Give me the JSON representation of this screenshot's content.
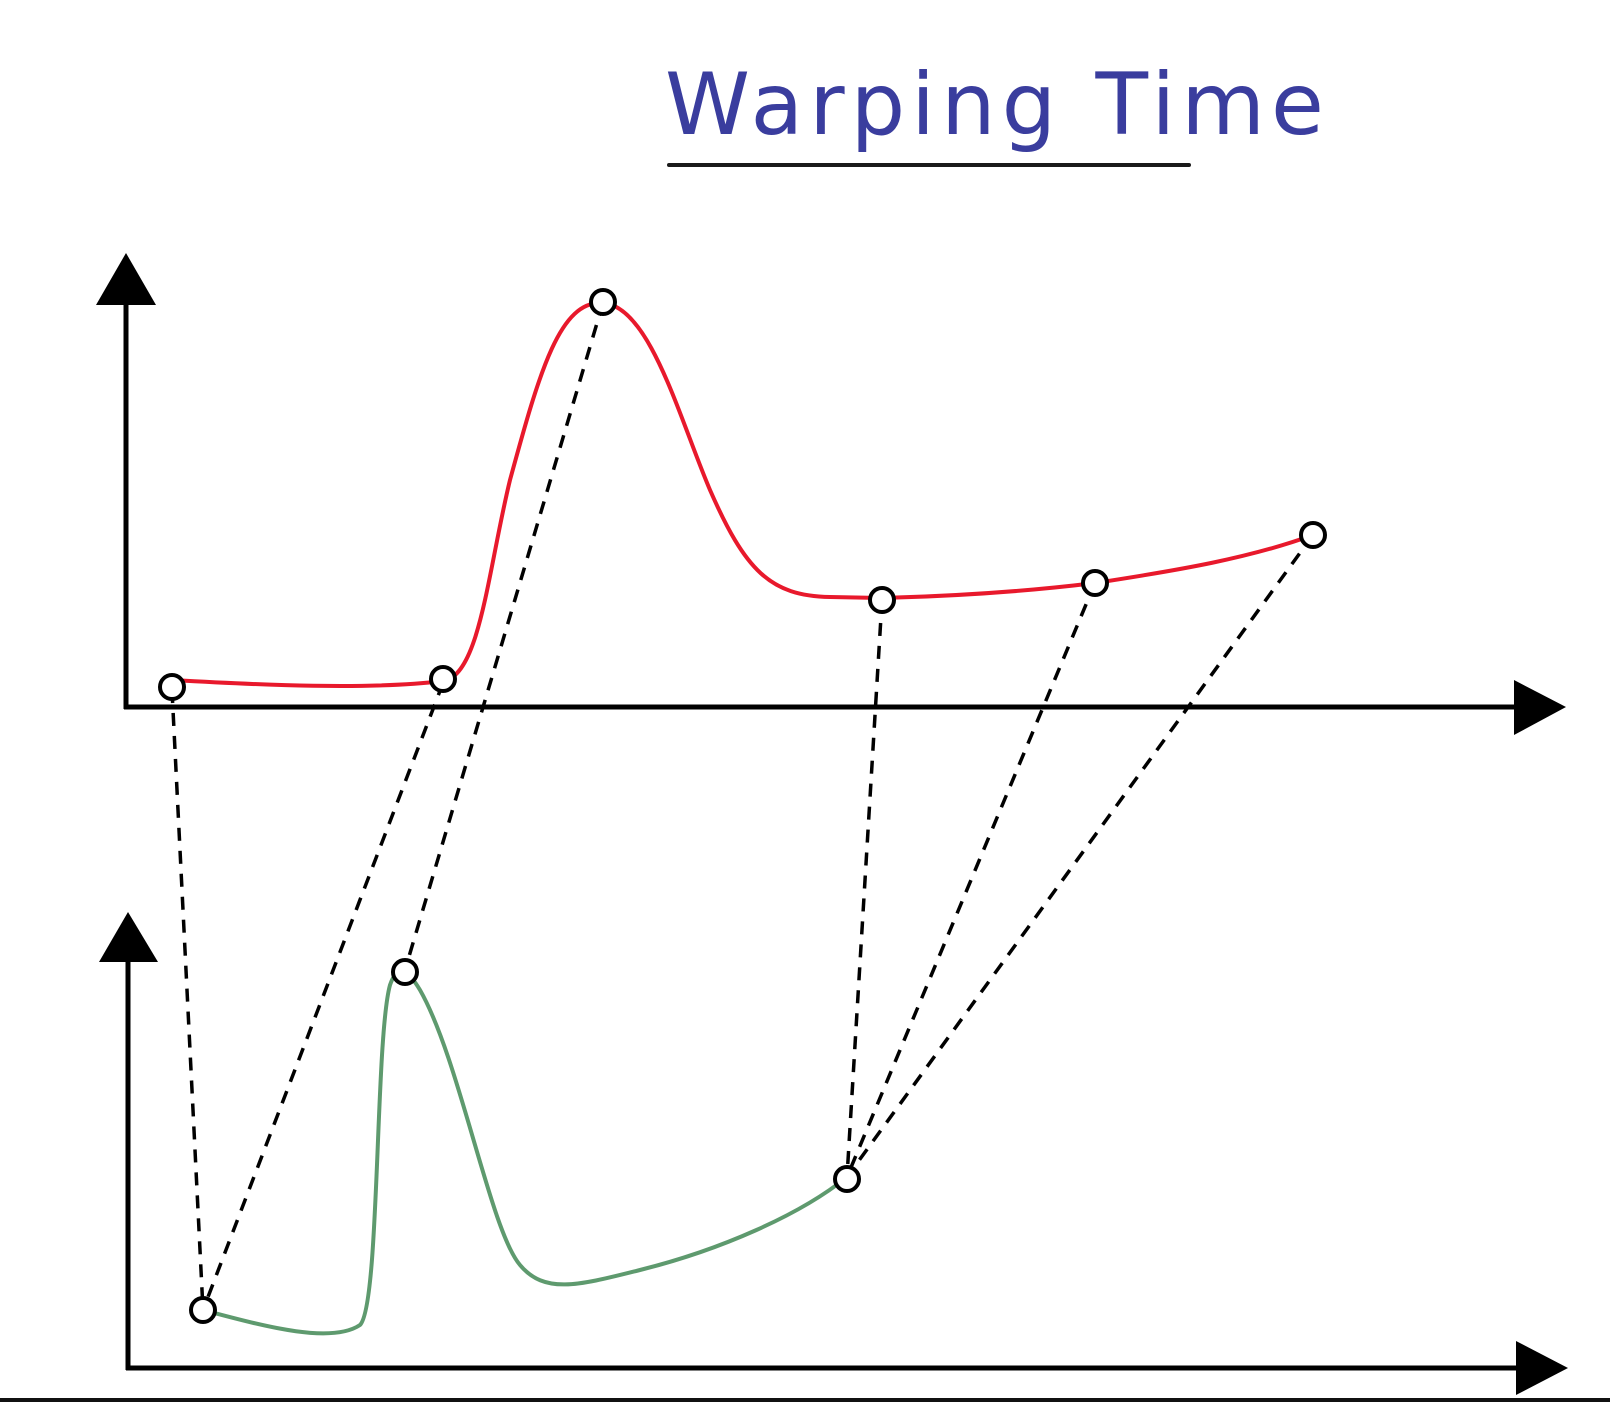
{
  "title": "Warping Time",
  "colors": {
    "title": "#3a3d9e",
    "top_series": "#e8192c",
    "bottom_series": "#5e9a6e",
    "axes": "#000000",
    "connectors": "#000000"
  },
  "top_series": {
    "color_name": "red",
    "key_point_count": 6
  },
  "bottom_series": {
    "color_name": "green",
    "key_point_count": 3
  },
  "alignment": {
    "style": "dashed",
    "pairs": [
      [
        1,
        1
      ],
      [
        2,
        1
      ],
      [
        3,
        2
      ],
      [
        4,
        3
      ],
      [
        5,
        3
      ],
      [
        6,
        3
      ]
    ]
  }
}
